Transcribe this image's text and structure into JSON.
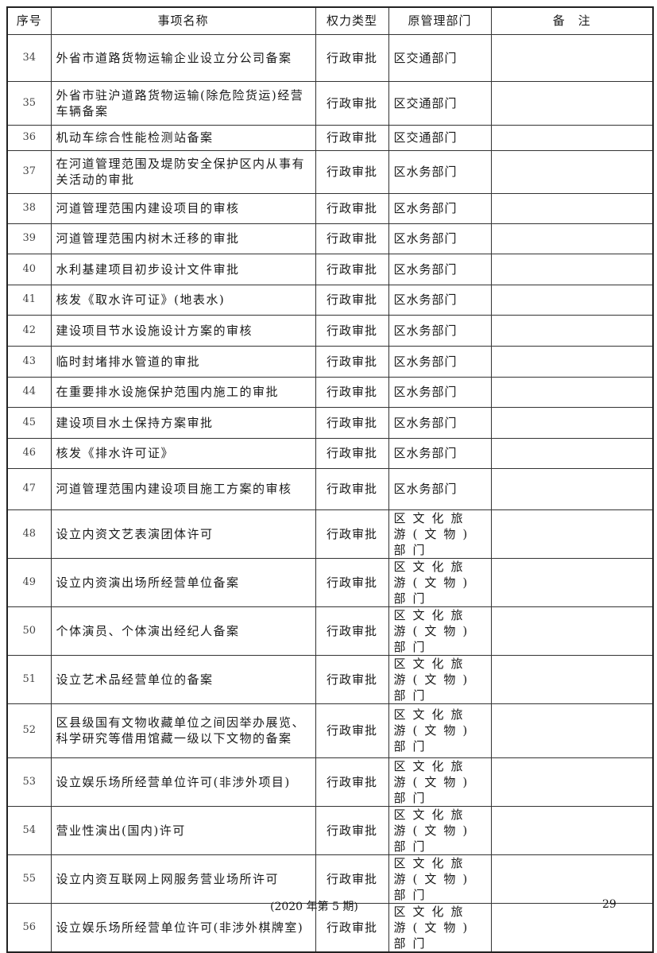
{
  "table": {
    "headers": [
      "序号",
      "事项名称",
      "权力类型",
      "原管理部门",
      "备　注"
    ],
    "rows": [
      {
        "no": "34",
        "name": "外省市道路货物运输企业设立分公司备案",
        "type": "行政审批",
        "dept": "区交通部门",
        "note": ""
      },
      {
        "no": "35",
        "name": "外省市驻沪道路货物运输(除危险货运)经营车辆备案",
        "type": "行政审批",
        "dept": "区交通部门",
        "note": ""
      },
      {
        "no": "36",
        "name": "机动车综合性能检测站备案",
        "type": "行政审批",
        "dept": "区交通部门",
        "note": ""
      },
      {
        "no": "37",
        "name": "在河道管理范围及堤防安全保护区内从事有关活动的审批",
        "type": "行政审批",
        "dept": "区水务部门",
        "note": ""
      },
      {
        "no": "38",
        "name": "河道管理范围内建设项目的审核",
        "type": "行政审批",
        "dept": "区水务部门",
        "note": ""
      },
      {
        "no": "39",
        "name": "河道管理范围内树木迁移的审批",
        "type": "行政审批",
        "dept": "区水务部门",
        "note": ""
      },
      {
        "no": "40",
        "name": "水利基建项目初步设计文件审批",
        "type": "行政审批",
        "dept": "区水务部门",
        "note": ""
      },
      {
        "no": "41",
        "name": "核发《取水许可证》(地表水)",
        "type": "行政审批",
        "dept": "区水务部门",
        "note": ""
      },
      {
        "no": "42",
        "name": "建设项目节水设施设计方案的审核",
        "type": "行政审批",
        "dept": "区水务部门",
        "note": ""
      },
      {
        "no": "43",
        "name": "临时封堵排水管道的审批",
        "type": "行政审批",
        "dept": "区水务部门",
        "note": ""
      },
      {
        "no": "44",
        "name": "在重要排水设施保护范围内施工的审批",
        "type": "行政审批",
        "dept": "区水务部门",
        "note": ""
      },
      {
        "no": "45",
        "name": "建设项目水土保持方案审批",
        "type": "行政审批",
        "dept": "区水务部门",
        "note": ""
      },
      {
        "no": "46",
        "name": "核发《排水许可证》",
        "type": "行政审批",
        "dept": "区水务部门",
        "note": ""
      },
      {
        "no": "47",
        "name": "河道管理范围内建设项目施工方案的审核",
        "type": "行政审批",
        "dept": "区水务部门",
        "note": ""
      },
      {
        "no": "48",
        "name": "设立内资文艺表演团体许可",
        "type": "行政审批",
        "dept": "区文化旅游(文物)部门",
        "note": ""
      },
      {
        "no": "49",
        "name": "设立内资演出场所经营单位备案",
        "type": "行政审批",
        "dept": "区文化旅游(文物)部门",
        "note": ""
      },
      {
        "no": "50",
        "name": "个体演员、个体演出经纪人备案",
        "type": "行政审批",
        "dept": "区文化旅游(文物)部门",
        "note": ""
      },
      {
        "no": "51",
        "name": "设立艺术品经营单位的备案",
        "type": "行政审批",
        "dept": "区文化旅游(文物)部门",
        "note": ""
      },
      {
        "no": "52",
        "name": "区县级国有文物收藏单位之间因举办展览、科学研究等借用馆藏一级以下文物的备案",
        "type": "行政审批",
        "dept": "区文化旅游(文物)部门",
        "note": ""
      },
      {
        "no": "53",
        "name": "设立娱乐场所经营单位许可(非涉外项目)",
        "type": "行政审批",
        "dept": "区文化旅游(文物)部门",
        "note": ""
      },
      {
        "no": "54",
        "name": "营业性演出(国内)许可",
        "type": "行政审批",
        "dept": "区文化旅游(文物)部门",
        "note": ""
      },
      {
        "no": "55",
        "name": "设立内资互联网上网服务营业场所许可",
        "type": "行政审批",
        "dept": "区文化旅游(文物)部门",
        "note": ""
      },
      {
        "no": "56",
        "name": "设立娱乐场所经营单位许可(非涉外棋牌室)",
        "type": "行政审批",
        "dept": "区文化旅游(文物)部门",
        "note": ""
      }
    ]
  },
  "footer": {
    "issue": "(2020 年第 5 期)",
    "page": "29"
  }
}
